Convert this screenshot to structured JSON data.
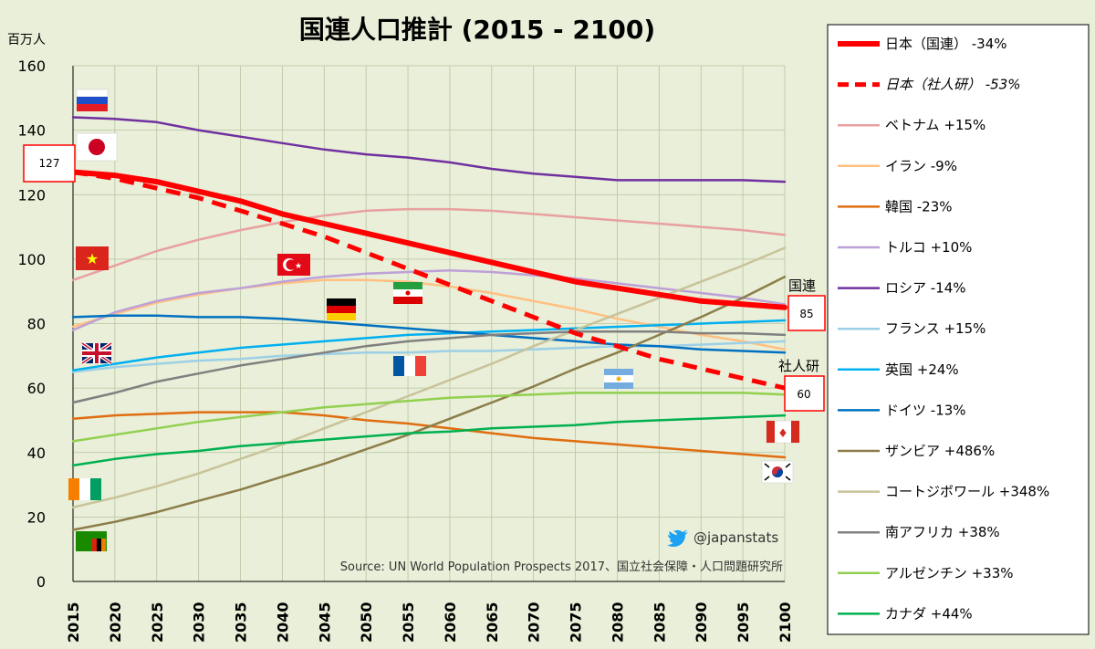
{
  "chart_data": {
    "type": "line",
    "title": "国連人口推計 (2015 - 2100)",
    "ylabel": "百万人",
    "xlabel": "",
    "ylim": [
      0,
      160
    ],
    "yticks": [
      0,
      20,
      40,
      60,
      80,
      100,
      120,
      140,
      160
    ],
    "x": [
      2015,
      2020,
      2025,
      2030,
      2035,
      2040,
      2045,
      2050,
      2055,
      2060,
      2065,
      2070,
      2075,
      2080,
      2085,
      2090,
      2095,
      2100
    ],
    "grid": true,
    "series": [
      {
        "name": "日本（国連） -34%",
        "color": "#ff0000",
        "style": "solid-thick",
        "values": [
          127,
          126,
          124,
          121,
          118,
          114,
          111,
          108,
          105,
          102,
          99,
          96,
          93,
          91,
          89,
          87,
          86,
          85
        ]
      },
      {
        "name": "日本（社人研） -53%",
        "color": "#ff0000",
        "style": "dashed",
        "values": [
          127,
          125,
          122,
          119,
          115,
          111,
          107,
          102,
          97,
          92,
          87,
          82,
          77,
          73,
          69,
          66,
          63,
          60
        ]
      },
      {
        "name": "ベトナム +15%",
        "color": "#e8a0a0",
        "style": "solid",
        "values": [
          93.5,
          98,
          102.5,
          106,
          109,
          111.5,
          113.5,
          115,
          115.5,
          115.5,
          115,
          114,
          113,
          112,
          111,
          110,
          109,
          107.5
        ]
      },
      {
        "name": "イラン -9%",
        "color": "#ffc080",
        "style": "solid",
        "values": [
          79,
          83,
          86.5,
          89,
          91,
          92.5,
          93.5,
          93.5,
          93,
          91.5,
          89.5,
          87,
          84.5,
          81.5,
          79,
          76.5,
          74.5,
          72
        ]
      },
      {
        "name": "韓国 -23%",
        "color": "#e06d10",
        "style": "solid",
        "values": [
          50.5,
          51.5,
          52,
          52.5,
          52.5,
          52.5,
          51.5,
          50,
          49,
          47.5,
          46,
          44.5,
          43.5,
          42.5,
          41.5,
          40.5,
          39.5,
          38.5
        ]
      },
      {
        "name": "トルコ +10%",
        "color": "#bda0d8",
        "style": "solid",
        "values": [
          78,
          83.5,
          87,
          89.5,
          91,
          93,
          94.5,
          95.5,
          96,
          96.5,
          96,
          95,
          94,
          92.5,
          91,
          89.5,
          88,
          86
        ]
      },
      {
        "name": "ロシア -14%",
        "color": "#7030a0",
        "style": "solid",
        "values": [
          144,
          143.5,
          142.5,
          140,
          138,
          136,
          134,
          132.5,
          131.5,
          130,
          128,
          126.5,
          125.5,
          124.5,
          124.5,
          124.5,
          124.5,
          124
        ]
      },
      {
        "name": "フランス +15%",
        "color": "#9dd0e6",
        "style": "solid",
        "values": [
          65,
          66.5,
          67.5,
          68.5,
          69,
          70,
          70.5,
          71,
          71,
          71.5,
          71.5,
          72,
          72.5,
          73,
          73,
          73.5,
          74,
          74.5
        ]
      },
      {
        "name": "英国 +24%",
        "color": "#00b0f0",
        "style": "solid",
        "values": [
          65.5,
          67.5,
          69.5,
          71,
          72.5,
          73.5,
          74.5,
          75.5,
          76.5,
          77,
          77.5,
          78,
          78.5,
          79,
          79.5,
          80,
          80.5,
          81
        ]
      },
      {
        "name": "ドイツ -13%",
        "color": "#0070c0",
        "style": "solid",
        "values": [
          82,
          82.5,
          82.5,
          82,
          82,
          81.5,
          80.5,
          79.5,
          78.5,
          77.5,
          76.5,
          75.5,
          74.5,
          73.5,
          73,
          72,
          71.5,
          71
        ]
      },
      {
        "name": "ザンビア +486%",
        "color": "#8c7d4a",
        "style": "solid",
        "values": [
          16,
          18.5,
          21.5,
          25,
          28.5,
          32.5,
          36.5,
          41,
          45.5,
          50.5,
          55.5,
          60.5,
          66,
          71,
          76.5,
          82,
          88,
          94.5
        ]
      },
      {
        "name": "コートジボワール +348%",
        "color": "#c8c39a",
        "style": "solid",
        "values": [
          23,
          26,
          29.5,
          33.5,
          38,
          42.5,
          47.5,
          52.5,
          57.5,
          62.5,
          67.5,
          73,
          78,
          83,
          88,
          93,
          98,
          103.5
        ]
      },
      {
        "name": "南アフリカ +38%",
        "color": "#808080",
        "style": "solid",
        "values": [
          55.5,
          58.5,
          62,
          64.5,
          67,
          69,
          71,
          73,
          74.5,
          75.5,
          76.5,
          77,
          77.5,
          77.5,
          77.5,
          77,
          77,
          76.5
        ]
      },
      {
        "name": "アルゼンチン +33%",
        "color": "#92d050",
        "style": "solid",
        "values": [
          43.5,
          45.5,
          47.5,
          49.5,
          51,
          52.5,
          54,
          55,
          56,
          57,
          57.5,
          58,
          58.5,
          58.5,
          58.5,
          58.5,
          58.5,
          58
        ]
      },
      {
        "name": "カナダ +44%",
        "color": "#00b050",
        "style": "solid",
        "values": [
          36,
          38,
          39.5,
          40.5,
          42,
          43,
          44,
          45,
          46,
          46.5,
          47.5,
          48,
          48.5,
          49.5,
          50,
          50.5,
          51,
          51.5
        ]
      }
    ],
    "annotations": {
      "start_value": "127",
      "un_label": "国連",
      "un_end_value": "85",
      "ipss_label": "社人研",
      "ipss_end_value": "60",
      "credit": "@japanstats",
      "source": "Source: UN World Population Prospects 2017、国立社会保障・人口問題研究所"
    },
    "legend_position": "right"
  }
}
